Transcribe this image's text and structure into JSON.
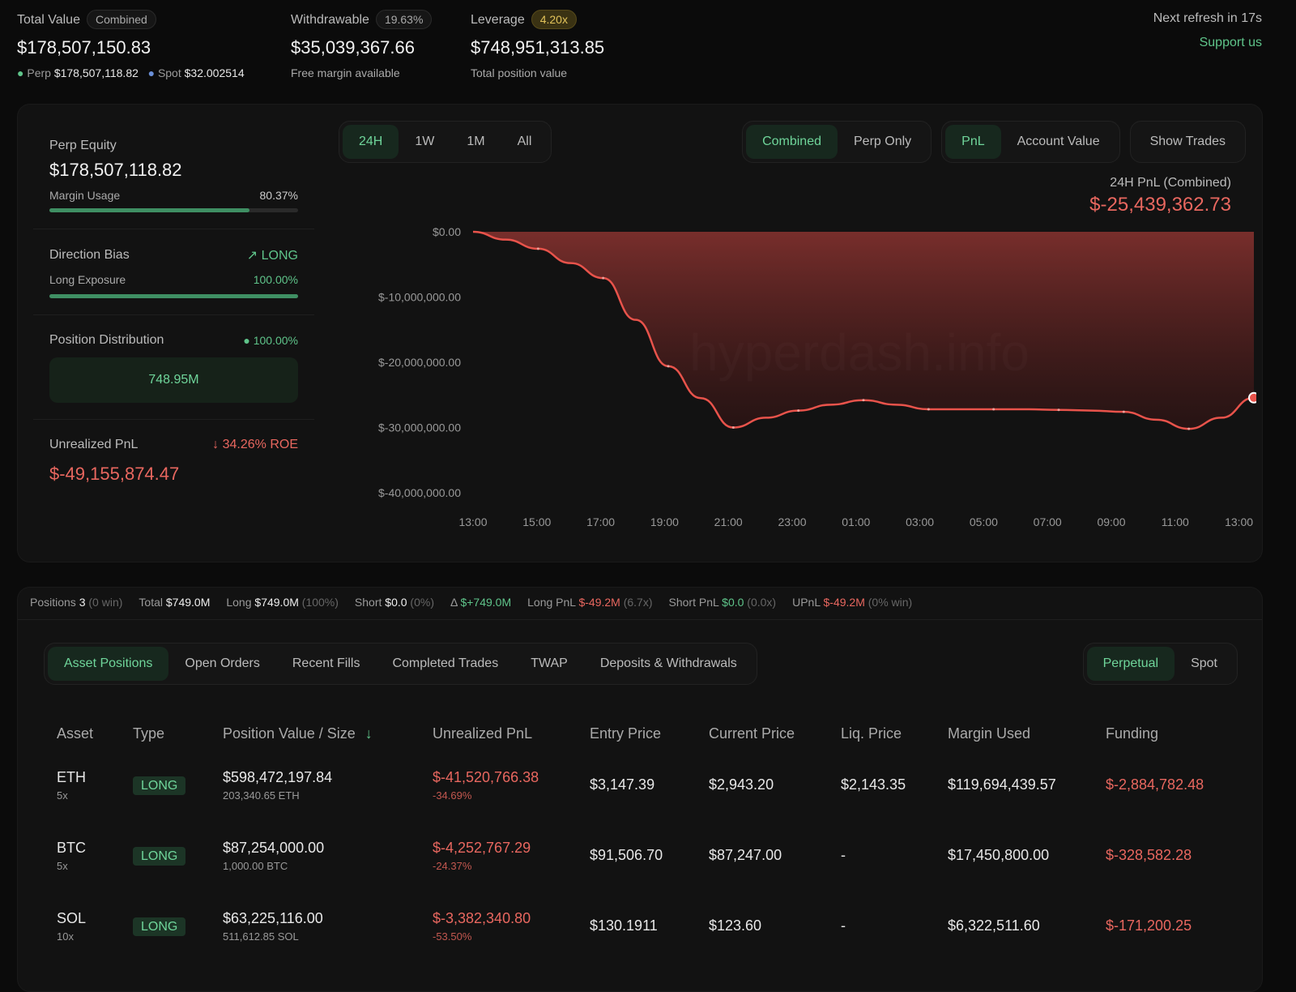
{
  "header": {
    "total_value": {
      "label": "Total Value",
      "badge": "Combined",
      "value": "$178,507,150.83",
      "perp_label": "Perp",
      "perp_value": "$178,507,118.82",
      "spot_label": "Spot",
      "spot_value": "$32.002514"
    },
    "withdrawable": {
      "label": "Withdrawable",
      "badge": "19.63%",
      "value": "$35,039,367.66",
      "sub": "Free margin available"
    },
    "leverage": {
      "label": "Leverage",
      "badge": "4.20x",
      "value": "$748,951,313.85",
      "sub": "Total position value"
    },
    "refresh": "Next refresh in 17s",
    "support": "Support us"
  },
  "summary": {
    "perp_equity_label": "Perp Equity",
    "perp_equity": "$178,507,118.82",
    "margin_usage_label": "Margin Usage",
    "margin_usage": "80.37%",
    "margin_usage_pct": 80.37,
    "direction_bias_label": "Direction Bias",
    "direction": "LONG",
    "long_exposure_label": "Long Exposure",
    "long_exposure": "100.00%",
    "long_exposure_pct": 100,
    "position_distribution_label": "Position Distribution",
    "position_distribution": "100.00%",
    "distribution_value": "748.95M",
    "unrealized_label": "Unrealized PnL",
    "roe": "34.26% ROE",
    "unrealized": "$-49,155,874.47"
  },
  "chart_controls": {
    "ranges": [
      "24H",
      "1W",
      "1M",
      "All"
    ],
    "modes": [
      "Combined",
      "Perp Only"
    ],
    "metrics": [
      "PnL",
      "Account Value"
    ],
    "show_trades": "Show Trades"
  },
  "chart_data": {
    "type": "area",
    "title": "24H PnL (Combined)",
    "headline_value": "$-25,439,362.73",
    "watermark": "hyperdash.info",
    "x": [
      "13:00",
      "14:00",
      "15:00",
      "16:00",
      "17:00",
      "18:00",
      "19:00",
      "20:00",
      "21:00",
      "22:00",
      "23:00",
      "00:00",
      "01:00",
      "02:00",
      "03:00",
      "04:00",
      "05:00",
      "06:00",
      "07:00",
      "08:00",
      "09:00",
      "10:00",
      "11:00",
      "12:00",
      "13:00"
    ],
    "values": [
      0,
      -1200000,
      -2600000,
      -4800000,
      -7100000,
      -13500000,
      -20600000,
      -25500000,
      -30000000,
      -28500000,
      -27400000,
      -26500000,
      -25800000,
      -26500000,
      -27200000,
      -27200000,
      -27200000,
      -27200000,
      -27300000,
      -27400000,
      -27600000,
      -28800000,
      -30200000,
      -28500000,
      -25439362.73
    ],
    "xticks": [
      "13:00",
      "15:00",
      "17:00",
      "19:00",
      "21:00",
      "23:00",
      "01:00",
      "03:00",
      "05:00",
      "07:00",
      "09:00",
      "11:00",
      "13:00"
    ],
    "yticks": [
      "$0.00",
      "$-10,000,000.00",
      "$-20,000,000.00",
      "$-30,000,000.00",
      "$-40,000,000.00"
    ],
    "ylim": [
      -40000000,
      0
    ],
    "line_color": "#e8534b",
    "grid": false
  },
  "stats": [
    {
      "k": "Positions",
      "v": "3",
      "n": "(0 win)",
      "c": ""
    },
    {
      "k": "Total",
      "v": "$749.0M",
      "n": "",
      "c": ""
    },
    {
      "k": "Long",
      "v": "$749.0M",
      "n": "(100%)",
      "c": ""
    },
    {
      "k": "Short",
      "v": "$0.0",
      "n": "(0%)",
      "c": ""
    },
    {
      "k": "Δ",
      "v": "$+749.0M",
      "n": "",
      "c": "green"
    },
    {
      "k": "Long PnL",
      "v": "$-49.2M",
      "n": "(6.7x)",
      "c": "red"
    },
    {
      "k": "Short PnL",
      "v": "$0.0",
      "n": "(0.0x)",
      "c": "green"
    },
    {
      "k": "UPnL",
      "v": "$-49.2M",
      "n": "(0% win)",
      "c": "red"
    }
  ],
  "tabs": [
    "Asset Positions",
    "Open Orders",
    "Recent Fills",
    "Completed Trades",
    "TWAP",
    "Deposits & Withdrawals"
  ],
  "market_tabs": [
    "Perpetual",
    "Spot"
  ],
  "table": {
    "headers": [
      "Asset",
      "Type",
      "Position Value / Size",
      "Unrealized PnL",
      "Entry Price",
      "Current Price",
      "Liq. Price",
      "Margin Used",
      "Funding"
    ],
    "rows": [
      {
        "asset": "ETH",
        "lev": "5x",
        "type": "LONG",
        "value": "$598,472,197.84",
        "size": "203,340.65 ETH",
        "pnl": "$-41,520,766.38",
        "pnl_pct": "-34.69%",
        "entry": "$3,147.39",
        "current": "$2,943.20",
        "liq": "$2,143.35",
        "margin": "$119,694,439.57",
        "funding": "$-2,884,782.48"
      },
      {
        "asset": "BTC",
        "lev": "5x",
        "type": "LONG",
        "value": "$87,254,000.00",
        "size": "1,000.00 BTC",
        "pnl": "$-4,252,767.29",
        "pnl_pct": "-24.37%",
        "entry": "$91,506.70",
        "current": "$87,247.00",
        "liq": "-",
        "margin": "$17,450,800.00",
        "funding": "$-328,582.28"
      },
      {
        "asset": "SOL",
        "lev": "10x",
        "type": "LONG",
        "value": "$63,225,116.00",
        "size": "511,612.85 SOL",
        "pnl": "$-3,382,340.80",
        "pnl_pct": "-53.50%",
        "entry": "$130.1911",
        "current": "$123.60",
        "liq": "-",
        "margin": "$6,322,511.60",
        "funding": "$-171,200.25"
      }
    ]
  }
}
